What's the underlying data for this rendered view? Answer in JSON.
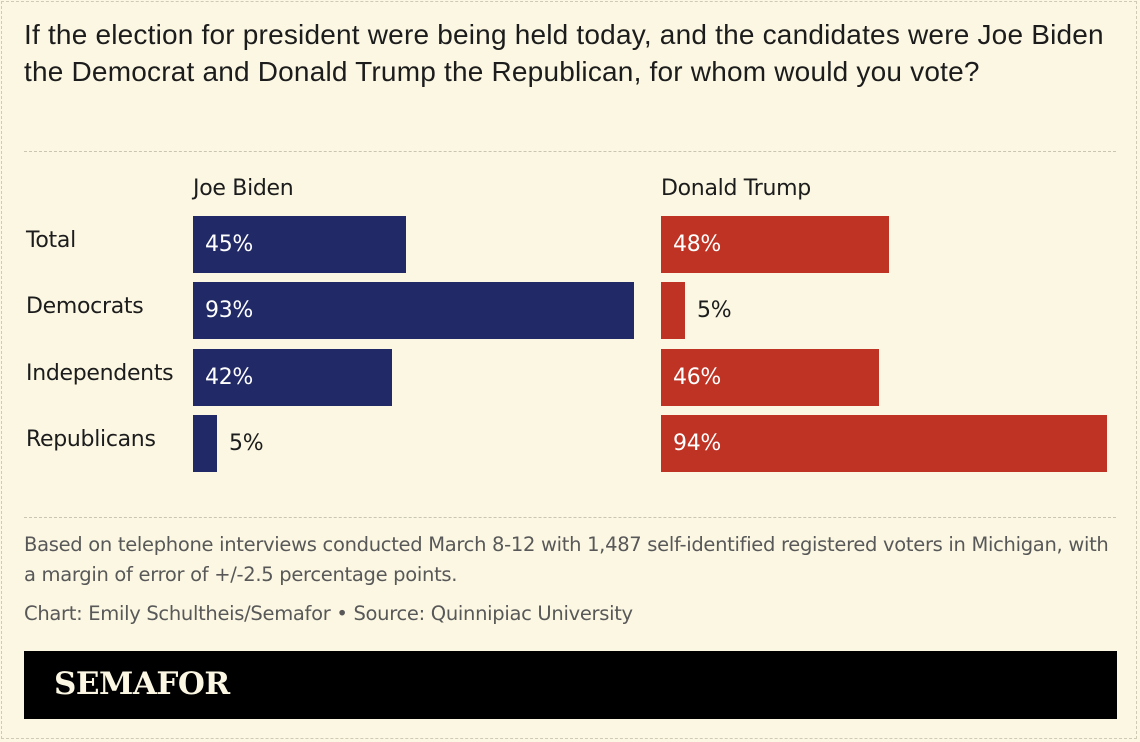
{
  "title": "If the election for president were being held today, and the candidates were Joe Biden the Democrat and Donald Trump the Republican, for whom would you vote?",
  "chart_data": {
    "type": "bar",
    "orientation": "horizontal",
    "layout": "side-by-side panels",
    "categories": [
      "Total",
      "Democrats",
      "Independents",
      "Republicans"
    ],
    "series": [
      {
        "name": "Joe Biden",
        "values": [
          45,
          93,
          42,
          5
        ],
        "color": "#212a66"
      },
      {
        "name": "Donald Trump",
        "values": [
          48,
          5,
          46,
          94
        ],
        "color": "#be3323"
      }
    ],
    "unit": "%",
    "xlim": [
      0,
      100
    ],
    "grid": false,
    "legend": "column headers"
  },
  "note": "Based on telephone interviews conducted March 8-12 with 1,487 self-identified registered voters in Michigan, with a margin of error of +/-2.5 percentage points.",
  "credit": "Chart: Emily Schultheis/Semafor • Source: Quinnipiac University",
  "footer": {
    "logo": "SEMAFOR"
  }
}
